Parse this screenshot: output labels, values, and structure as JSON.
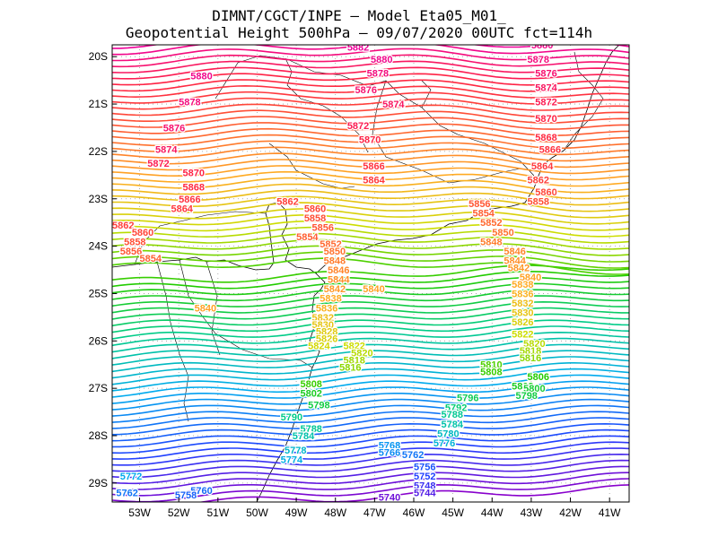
{
  "title": {
    "line1": "DIMNT/CGCT/INPE –  Model Eta05_M01_",
    "line2": "Geopotential Height 500hPa –  09/07/2020 00UTC fct=114h"
  },
  "map": {
    "lon_range": [
      -53.7,
      -40.5
    ],
    "lat_range": [
      -29.4,
      -19.75
    ],
    "lat_ticks": [
      {
        "value": -20,
        "label": "20S"
      },
      {
        "value": -21,
        "label": "21S"
      },
      {
        "value": -22,
        "label": "22S"
      },
      {
        "value": -23,
        "label": "23S"
      },
      {
        "value": -24,
        "label": "24S"
      },
      {
        "value": -25,
        "label": "25S"
      },
      {
        "value": -26,
        "label": "26S"
      },
      {
        "value": -27,
        "label": "27S"
      },
      {
        "value": -28,
        "label": "28S"
      },
      {
        "value": -29,
        "label": "29S"
      }
    ],
    "lon_ticks": [
      {
        "value": -53,
        "label": "53W"
      },
      {
        "value": -52,
        "label": "52W"
      },
      {
        "value": -51,
        "label": "51W"
      },
      {
        "value": -50,
        "label": "50W"
      },
      {
        "value": -49,
        "label": "49W"
      },
      {
        "value": -48,
        "label": "48W"
      },
      {
        "value": -47,
        "label": "47W"
      },
      {
        "value": -46,
        "label": "46W"
      },
      {
        "value": -45,
        "label": "45W"
      },
      {
        "value": -44,
        "label": "44W"
      },
      {
        "value": -43,
        "label": "43W"
      },
      {
        "value": -42,
        "label": "42W"
      },
      {
        "value": -41,
        "label": "41W"
      }
    ],
    "contours": {
      "min": 5736,
      "max": 5882,
      "interval": 2,
      "color_stops": [
        {
          "value": 5736,
          "color": "#8800cc"
        },
        {
          "value": 5752,
          "color": "#2040ff"
        },
        {
          "value": 5772,
          "color": "#00aaee"
        },
        {
          "value": 5790,
          "color": "#00cc88"
        },
        {
          "value": 5806,
          "color": "#22cc00"
        },
        {
          "value": 5822,
          "color": "#ccdd00"
        },
        {
          "value": 5838,
          "color": "#ffaa22"
        },
        {
          "value": 5856,
          "color": "#ff5533"
        },
        {
          "value": 5870,
          "color": "#ff2244"
        },
        {
          "value": 5882,
          "color": "#ee0099"
        }
      ]
    },
    "labels": [
      {
        "text": "5882",
        "lon": -47.7,
        "lat": -19.8
      },
      {
        "text": "5880",
        "lon": -47.1,
        "lat": -20.05
      },
      {
        "text": "5878",
        "lon": -47.2,
        "lat": -20.35
      },
      {
        "text": "5876",
        "lon": -47.5,
        "lat": -20.7
      },
      {
        "text": "5874",
        "lon": -46.8,
        "lat": -21.0
      },
      {
        "text": "5872",
        "lon": -47.7,
        "lat": -21.45
      },
      {
        "text": "5870",
        "lon": -47.4,
        "lat": -21.75
      },
      {
        "text": "5866",
        "lon": -47.3,
        "lat": -22.3
      },
      {
        "text": "5864",
        "lon": -47.3,
        "lat": -22.6
      },
      {
        "text": "5880",
        "lon": -51.7,
        "lat": -20.4
      },
      {
        "text": "5878",
        "lon": -52.0,
        "lat": -20.95
      },
      {
        "text": "5876",
        "lon": -52.4,
        "lat": -21.5
      },
      {
        "text": "5874",
        "lon": -52.6,
        "lat": -21.95
      },
      {
        "text": "5872",
        "lon": -52.8,
        "lat": -22.25
      },
      {
        "text": "5870",
        "lon": -51.9,
        "lat": -22.45
      },
      {
        "text": "5868",
        "lon": -51.9,
        "lat": -22.75
      },
      {
        "text": "5866",
        "lon": -52.0,
        "lat": -23.0
      },
      {
        "text": "5864",
        "lon": -52.2,
        "lat": -23.2
      },
      {
        "text": "5862",
        "lon": -53.7,
        "lat": -23.55
      },
      {
        "text": "5860",
        "lon": -53.2,
        "lat": -23.7
      },
      {
        "text": "5858",
        "lon": -53.4,
        "lat": -23.9
      },
      {
        "text": "5856",
        "lon": -53.5,
        "lat": -24.1
      },
      {
        "text": "5854",
        "lon": -53.0,
        "lat": -24.25
      },
      {
        "text": "5862",
        "lon": -49.5,
        "lat": -23.05
      },
      {
        "text": "5860",
        "lon": -48.8,
        "lat": -23.2
      },
      {
        "text": "5858",
        "lon": -48.8,
        "lat": -23.4
      },
      {
        "text": "5856",
        "lon": -48.6,
        "lat": -23.6
      },
      {
        "text": "5854",
        "lon": -49.0,
        "lat": -23.8
      },
      {
        "text": "5852",
        "lon": -48.4,
        "lat": -23.95
      },
      {
        "text": "5850",
        "lon": -48.3,
        "lat": -24.1
      },
      {
        "text": "5848",
        "lon": -48.3,
        "lat": -24.3
      },
      {
        "text": "5846",
        "lon": -48.2,
        "lat": -24.5
      },
      {
        "text": "5844",
        "lon": -48.2,
        "lat": -24.7
      },
      {
        "text": "5842",
        "lon": -48.3,
        "lat": -24.9
      },
      {
        "text": "5840",
        "lon": -47.3,
        "lat": -24.9
      },
      {
        "text": "5840",
        "lon": -51.6,
        "lat": -25.3
      },
      {
        "text": "5838",
        "lon": -48.4,
        "lat": -25.1
      },
      {
        "text": "5836",
        "lon": -48.5,
        "lat": -25.3
      },
      {
        "text": "5832",
        "lon": -48.6,
        "lat": -25.5
      },
      {
        "text": "5830",
        "lon": -48.6,
        "lat": -25.65
      },
      {
        "text": "5828",
        "lon": -48.5,
        "lat": -25.8
      },
      {
        "text": "5826",
        "lon": -48.5,
        "lat": -25.95
      },
      {
        "text": "5824",
        "lon": -48.7,
        "lat": -26.1
      },
      {
        "text": "5822",
        "lon": -47.8,
        "lat": -26.1
      },
      {
        "text": "5820",
        "lon": -47.6,
        "lat": -26.25
      },
      {
        "text": "5818",
        "lon": -47.8,
        "lat": -26.4
      },
      {
        "text": "5816",
        "lon": -47.9,
        "lat": -26.55
      },
      {
        "text": "5808",
        "lon": -48.9,
        "lat": -26.9
      },
      {
        "text": "5802",
        "lon": -48.9,
        "lat": -27.1
      },
      {
        "text": "5798",
        "lon": -48.7,
        "lat": -27.35
      },
      {
        "text": "5790",
        "lon": -49.4,
        "lat": -27.6
      },
      {
        "text": "5788",
        "lon": -48.9,
        "lat": -27.85
      },
      {
        "text": "5784",
        "lon": -49.1,
        "lat": -28.0
      },
      {
        "text": "5778",
        "lon": -49.3,
        "lat": -28.3
      },
      {
        "text": "5774",
        "lon": -49.4,
        "lat": -28.5
      },
      {
        "text": "5768",
        "lon": -46.9,
        "lat": -28.2
      },
      {
        "text": "5766",
        "lon": -46.9,
        "lat": -28.35
      },
      {
        "text": "5762",
        "lon": -46.3,
        "lat": -28.4
      },
      {
        "text": "5756",
        "lon": -46.0,
        "lat": -28.65
      },
      {
        "text": "5752",
        "lon": -46.0,
        "lat": -28.85
      },
      {
        "text": "5748",
        "lon": -46.0,
        "lat": -29.05
      },
      {
        "text": "5744",
        "lon": -46.0,
        "lat": -29.2
      },
      {
        "text": "5740",
        "lon": -46.9,
        "lat": -29.3
      },
      {
        "text": "5772",
        "lon": -53.5,
        "lat": -28.85
      },
      {
        "text": "5762",
        "lon": -53.6,
        "lat": -29.2
      },
      {
        "text": "5760",
        "lon": -51.7,
        "lat": -29.15
      },
      {
        "text": "5758",
        "lon": -52.1,
        "lat": -29.25
      },
      {
        "text": "5880",
        "lon": -43.0,
        "lat": -19.75
      },
      {
        "text": "5878",
        "lon": -43.1,
        "lat": -20.05
      },
      {
        "text": "5876",
        "lon": -42.9,
        "lat": -20.35
      },
      {
        "text": "5874",
        "lon": -42.9,
        "lat": -20.65
      },
      {
        "text": "5872",
        "lon": -42.9,
        "lat": -20.95
      },
      {
        "text": "5870",
        "lon": -42.9,
        "lat": -21.3
      },
      {
        "text": "5868",
        "lon": -42.9,
        "lat": -21.7
      },
      {
        "text": "5866",
        "lon": -42.8,
        "lat": -21.95
      },
      {
        "text": "5864",
        "lon": -43.0,
        "lat": -22.3
      },
      {
        "text": "5862",
        "lon": -43.1,
        "lat": -22.6
      },
      {
        "text": "5860",
        "lon": -42.9,
        "lat": -22.85
      },
      {
        "text": "5858",
        "lon": -43.1,
        "lat": -23.05
      },
      {
        "text": "5856",
        "lon": -44.6,
        "lat": -23.1
      },
      {
        "text": "5854",
        "lon": -44.5,
        "lat": -23.3
      },
      {
        "text": "5852",
        "lon": -44.3,
        "lat": -23.5
      },
      {
        "text": "5850",
        "lon": -44.0,
        "lat": -23.7
      },
      {
        "text": "5848",
        "lon": -44.3,
        "lat": -23.9
      },
      {
        "text": "5846",
        "lon": -43.7,
        "lat": -24.1
      },
      {
        "text": "5844",
        "lon": -43.7,
        "lat": -24.3
      },
      {
        "text": "5842",
        "lon": -43.6,
        "lat": -24.45
      },
      {
        "text": "5840",
        "lon": -43.3,
        "lat": -24.65
      },
      {
        "text": "5838",
        "lon": -43.5,
        "lat": -24.8
      },
      {
        "text": "5836",
        "lon": -43.5,
        "lat": -25.0
      },
      {
        "text": "5832",
        "lon": -43.5,
        "lat": -25.2
      },
      {
        "text": "5830",
        "lon": -43.5,
        "lat": -25.4
      },
      {
        "text": "5826",
        "lon": -43.5,
        "lat": -25.6
      },
      {
        "text": "5822",
        "lon": -43.5,
        "lat": -25.85
      },
      {
        "text": "5820",
        "lon": -43.2,
        "lat": -26.05
      },
      {
        "text": "5818",
        "lon": -43.3,
        "lat": -26.2
      },
      {
        "text": "5816",
        "lon": -43.3,
        "lat": -26.35
      },
      {
        "text": "5810",
        "lon": -44.3,
        "lat": -26.5
      },
      {
        "text": "5808",
        "lon": -44.3,
        "lat": -26.65
      },
      {
        "text": "5806",
        "lon": -43.1,
        "lat": -26.75
      },
      {
        "text": "5802",
        "lon": -43.5,
        "lat": -26.95
      },
      {
        "text": "5800",
        "lon": -43.2,
        "lat": -27.0
      },
      {
        "text": "5798",
        "lon": -43.4,
        "lat": -27.15
      },
      {
        "text": "5796",
        "lon": -44.9,
        "lat": -27.2
      },
      {
        "text": "5792",
        "lon": -45.2,
        "lat": -27.4
      },
      {
        "text": "5788",
        "lon": -45.3,
        "lat": -27.55
      },
      {
        "text": "5784",
        "lon": -45.3,
        "lat": -27.75
      },
      {
        "text": "5780",
        "lon": -45.4,
        "lat": -27.95
      },
      {
        "text": "5776",
        "lon": -45.5,
        "lat": -28.15
      }
    ]
  }
}
